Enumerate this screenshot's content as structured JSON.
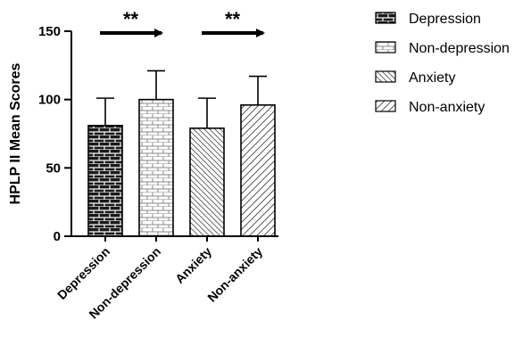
{
  "chart_data": {
    "type": "bar",
    "ylabel": "HPLP II  Mean Scores",
    "ylim": [
      0,
      150
    ],
    "yticks": [
      0,
      50,
      100,
      150
    ],
    "categories": [
      "Depression",
      "Non-depression",
      "Anxiety",
      "Non-anxiety"
    ],
    "values": [
      81,
      100,
      79,
      96
    ],
    "error_upper": [
      101,
      121,
      101,
      117
    ],
    "patterns": [
      "brick-dark",
      "brick-light",
      "diagonal-back",
      "diagonal-forward"
    ],
    "legend": {
      "position": "right",
      "entries": [
        "Depression",
        "Non-depression",
        "Anxiety",
        "Non-anxiety"
      ]
    },
    "annotations": [
      {
        "text": "**",
        "from": "Depression",
        "to": "Non-depression",
        "arrow": true
      },
      {
        "text": "**",
        "from": "Anxiety",
        "to": "Non-anxiety",
        "arrow": true
      }
    ],
    "colors": {
      "bar_dark": "#1a1a1a",
      "bar_border": "#000000",
      "pattern_light": "#c8c8c8"
    }
  }
}
